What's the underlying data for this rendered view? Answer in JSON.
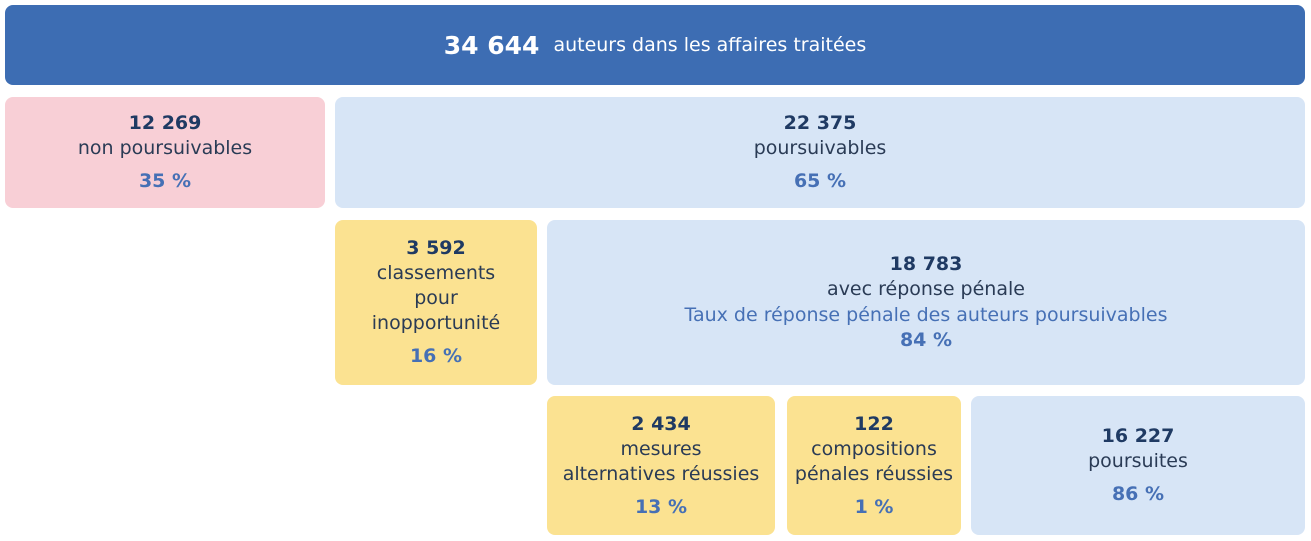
{
  "colors": {
    "header": "#3d6db3",
    "pink": "#f8cfd6",
    "blue": "#d7e5f6",
    "yellow": "#fbe291",
    "number_text": "#1f3a63",
    "percent_text": "#4670b5"
  },
  "header": {
    "value": "34 644",
    "label": "auteurs dans les affaires traitées"
  },
  "non_poursuivables": {
    "value": "12 269",
    "label": "non poursuivables",
    "percent": "35 %"
  },
  "poursuivables": {
    "value": "22 375",
    "label": "poursuivables",
    "percent": "65 %"
  },
  "classements": {
    "value": "3 592",
    "label_lines": [
      "classements",
      "pour",
      "inopportunité"
    ],
    "percent": "16 %"
  },
  "reponse_penale": {
    "value": "18 783",
    "label": "avec réponse pénale",
    "note": "Taux de réponse pénale des auteurs poursuivables",
    "percent": "84 %"
  },
  "mesures_alternatives": {
    "value": "2 434",
    "label_lines": [
      "mesures",
      "alternatives réussies"
    ],
    "percent": "13 %"
  },
  "compositions_penales": {
    "value": "122",
    "label_lines": [
      "compositions",
      "pénales réussies"
    ],
    "percent": "1 %"
  },
  "poursuites": {
    "value": "16 227",
    "label": "poursuites",
    "percent": "86 %"
  }
}
